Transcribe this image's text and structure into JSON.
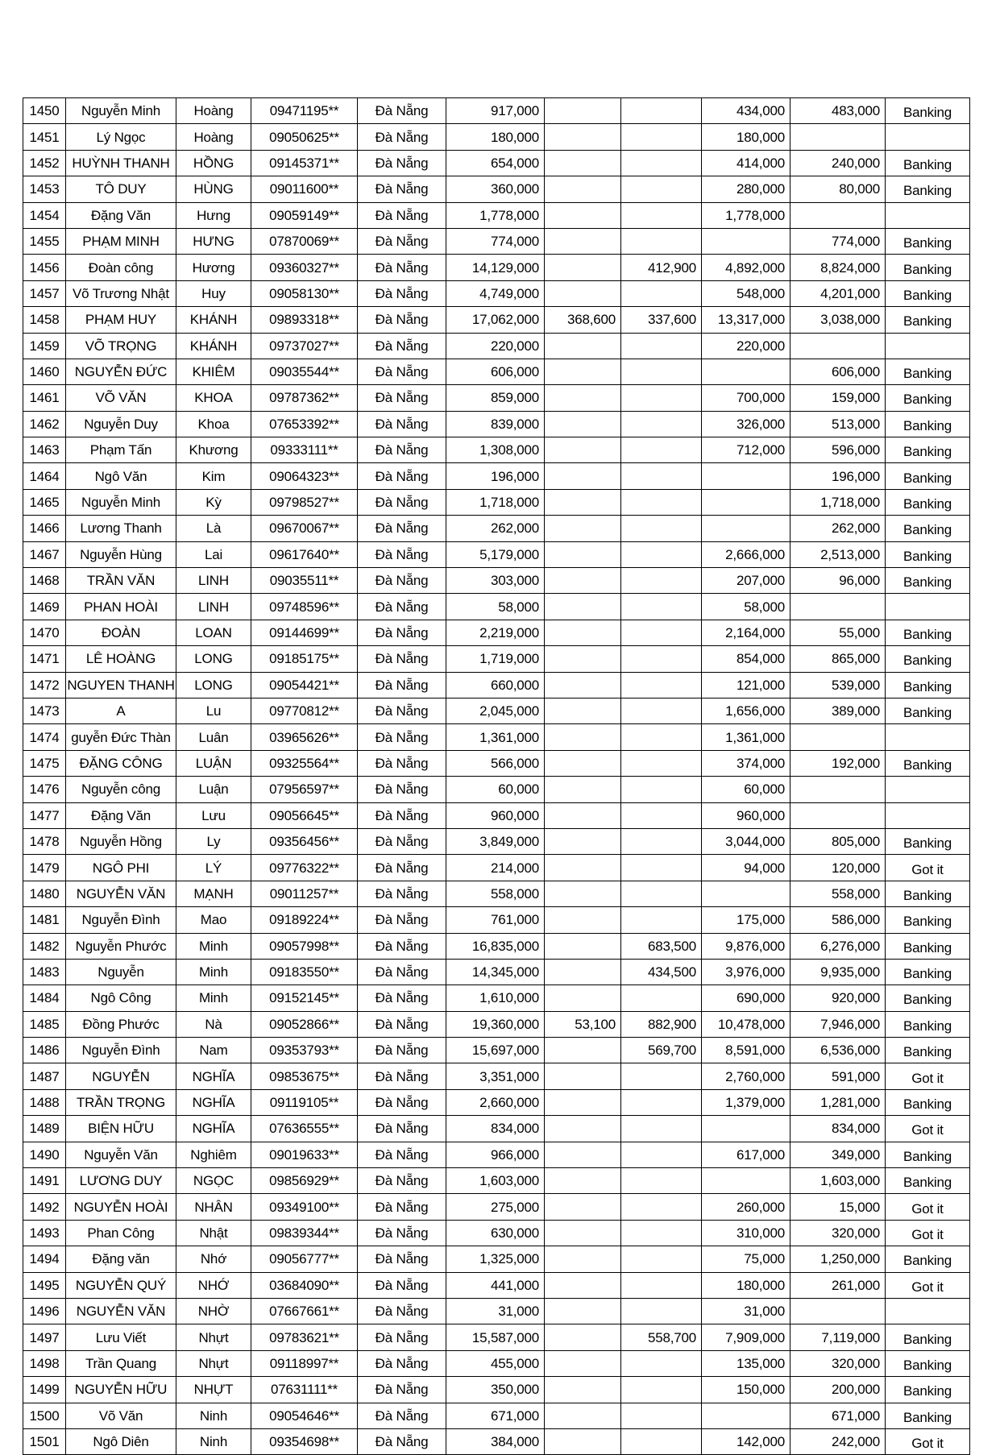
{
  "rows": [
    [
      "1450",
      "Nguyễn Minh",
      "Hoàng",
      "09471195**",
      "Đà Nẵng",
      "917,000",
      "",
      "",
      "434,000",
      "483,000",
      "Banking"
    ],
    [
      "1451",
      "Lý Ngọc",
      "Hoàng",
      "09050625**",
      "Đà Nẵng",
      "180,000",
      "",
      "",
      "180,000",
      "",
      ""
    ],
    [
      "1452",
      "HUỲNH THANH",
      "HỒNG",
      "09145371**",
      "Đà Nẵng",
      "654,000",
      "",
      "",
      "414,000",
      "240,000",
      "Banking"
    ],
    [
      "1453",
      "TÔ DUY",
      "HÙNG",
      "09011600**",
      "Đà Nẵng",
      "360,000",
      "",
      "",
      "280,000",
      "80,000",
      "Banking"
    ],
    [
      "1454",
      "Đặng Văn",
      "Hưng",
      "09059149**",
      "Đà Nẵng",
      "1,778,000",
      "",
      "",
      "1,778,000",
      "",
      ""
    ],
    [
      "1455",
      "PHẠM MINH",
      "HƯNG",
      "07870069**",
      "Đà Nẵng",
      "774,000",
      "",
      "",
      "",
      "774,000",
      "Banking"
    ],
    [
      "1456",
      "Đoàn công",
      "Hương",
      "09360327**",
      "Đà Nẵng",
      "14,129,000",
      "",
      "412,900",
      "4,892,000",
      "8,824,000",
      "Banking"
    ],
    [
      "1457",
      "Võ Trương Nhật",
      "Huy",
      "09058130**",
      "Đà Nẵng",
      "4,749,000",
      "",
      "",
      "548,000",
      "4,201,000",
      "Banking"
    ],
    [
      "1458",
      "PHẠM HUY",
      "KHÁNH",
      "09893318**",
      "Đà Nẵng",
      "17,062,000",
      "368,600",
      "337,600",
      "13,317,000",
      "3,038,000",
      "Banking"
    ],
    [
      "1459",
      "VÕ TRỌNG",
      "KHÁNH",
      "09737027**",
      "Đà Nẵng",
      "220,000",
      "",
      "",
      "220,000",
      "",
      ""
    ],
    [
      "1460",
      "NGUYỄN ĐỨC",
      "KHIÊM",
      "09035544**",
      "Đà Nẵng",
      "606,000",
      "",
      "",
      "",
      "606,000",
      "Banking"
    ],
    [
      "1461",
      "VÕ VĂN",
      "KHOA",
      "09787362**",
      "Đà Nẵng",
      "859,000",
      "",
      "",
      "700,000",
      "159,000",
      "Banking"
    ],
    [
      "1462",
      "Nguyễn Duy",
      "Khoa",
      "07653392**",
      "Đà Nẵng",
      "839,000",
      "",
      "",
      "326,000",
      "513,000",
      "Banking"
    ],
    [
      "1463",
      "Phạm Tấn",
      "Khương",
      "09333111**",
      "Đà Nẵng",
      "1,308,000",
      "",
      "",
      "712,000",
      "596,000",
      "Banking"
    ],
    [
      "1464",
      "Ngô Văn",
      "Kim",
      "09064323**",
      "Đà Nẵng",
      "196,000",
      "",
      "",
      "",
      "196,000",
      "Banking"
    ],
    [
      "1465",
      "Nguyễn Minh",
      "Kỳ",
      "09798527**",
      "Đà Nẵng",
      "1,718,000",
      "",
      "",
      "",
      "1,718,000",
      "Banking"
    ],
    [
      "1466",
      "Lương Thanh",
      "Là",
      "09670067**",
      "Đà Nẵng",
      "262,000",
      "",
      "",
      "",
      "262,000",
      "Banking"
    ],
    [
      "1467",
      "Nguyễn Hùng",
      "Lai",
      "09617640**",
      "Đà Nẵng",
      "5,179,000",
      "",
      "",
      "2,666,000",
      "2,513,000",
      "Banking"
    ],
    [
      "1468",
      "TRẦN VĂN",
      "LINH",
      "09035511**",
      "Đà Nẵng",
      "303,000",
      "",
      "",
      "207,000",
      "96,000",
      "Banking"
    ],
    [
      "1469",
      "PHAN HOÀI",
      "LINH",
      "09748596**",
      "Đà Nẵng",
      "58,000",
      "",
      "",
      "58,000",
      "",
      ""
    ],
    [
      "1470",
      "ĐOÀN",
      "LOAN",
      "09144699**",
      "Đà Nẵng",
      "2,219,000",
      "",
      "",
      "2,164,000",
      "55,000",
      "Banking"
    ],
    [
      "1471",
      "LÊ HOÀNG",
      "LONG",
      "09185175**",
      "Đà Nẵng",
      "1,719,000",
      "",
      "",
      "854,000",
      "865,000",
      "Banking"
    ],
    [
      "1472",
      "NGUYEN THANH",
      "LONG",
      "09054421**",
      "Đà Nẵng",
      "660,000",
      "",
      "",
      "121,000",
      "539,000",
      "Banking"
    ],
    [
      "1473",
      "A",
      "Lu",
      "09770812**",
      "Đà Nẵng",
      "2,045,000",
      "",
      "",
      "1,656,000",
      "389,000",
      "Banking"
    ],
    [
      "1474",
      "guyễn Đức Thàn",
      "Luân",
      "03965626**",
      "Đà Nẵng",
      "1,361,000",
      "",
      "",
      "1,361,000",
      "",
      ""
    ],
    [
      "1475",
      "ĐẶNG CÔNG",
      "LUẬN",
      "09325564**",
      "Đà Nẵng",
      "566,000",
      "",
      "",
      "374,000",
      "192,000",
      "Banking"
    ],
    [
      "1476",
      "Nguyễn công",
      "Luận",
      "07956597**",
      "Đà Nẵng",
      "60,000",
      "",
      "",
      "60,000",
      "",
      ""
    ],
    [
      "1477",
      "Đặng Văn",
      "Lưu",
      "09056645**",
      "Đà Nẵng",
      "960,000",
      "",
      "",
      "960,000",
      "",
      ""
    ],
    [
      "1478",
      "Nguyễn Hồng",
      "Ly",
      "09356456**",
      "Đà Nẵng",
      "3,849,000",
      "",
      "",
      "3,044,000",
      "805,000",
      "Banking"
    ],
    [
      "1479",
      "NGÔ PHI",
      "LÝ",
      "09776322**",
      "Đà Nẵng",
      "214,000",
      "",
      "",
      "94,000",
      "120,000",
      "Got it"
    ],
    [
      "1480",
      "NGUYỄN VĂN",
      "MẠNH",
      "09011257**",
      "Đà Nẵng",
      "558,000",
      "",
      "",
      "",
      "558,000",
      "Banking"
    ],
    [
      "1481",
      "Nguyễn Đình",
      "Mao",
      "09189224**",
      "Đà Nẵng",
      "761,000",
      "",
      "",
      "175,000",
      "586,000",
      "Banking"
    ],
    [
      "1482",
      "Nguyễn Phước",
      "Minh",
      "09057998**",
      "Đà Nẵng",
      "16,835,000",
      "",
      "683,500",
      "9,876,000",
      "6,276,000",
      "Banking"
    ],
    [
      "1483",
      "Nguyễn",
      "Minh",
      "09183550**",
      "Đà Nẵng",
      "14,345,000",
      "",
      "434,500",
      "3,976,000",
      "9,935,000",
      "Banking"
    ],
    [
      "1484",
      "Ngô Công",
      "Minh",
      "09152145**",
      "Đà Nẵng",
      "1,610,000",
      "",
      "",
      "690,000",
      "920,000",
      "Banking"
    ],
    [
      "1485",
      "Đồng Phước",
      "Nà",
      "09052866**",
      "Đà Nẵng",
      "19,360,000",
      "53,100",
      "882,900",
      "10,478,000",
      "7,946,000",
      "Banking"
    ],
    [
      "1486",
      "Nguyễn Đình",
      "Nam",
      "09353793**",
      "Đà Nẵng",
      "15,697,000",
      "",
      "569,700",
      "8,591,000",
      "6,536,000",
      "Banking"
    ],
    [
      "1487",
      "NGUYỄN",
      "NGHĨA",
      "09853675**",
      "Đà Nẵng",
      "3,351,000",
      "",
      "",
      "2,760,000",
      "591,000",
      "Got it"
    ],
    [
      "1488",
      "TRẦN TRỌNG",
      "NGHĨA",
      "09119105**",
      "Đà Nẵng",
      "2,660,000",
      "",
      "",
      "1,379,000",
      "1,281,000",
      "Banking"
    ],
    [
      "1489",
      "BIỆN HỮU",
      "NGHĨA",
      "07636555**",
      "Đà Nẵng",
      "834,000",
      "",
      "",
      "",
      "834,000",
      "Got it"
    ],
    [
      "1490",
      "Nguyễn Văn",
      "Nghiêm",
      "09019633**",
      "Đà Nẵng",
      "966,000",
      "",
      "",
      "617,000",
      "349,000",
      "Banking"
    ],
    [
      "1491",
      "LƯƠNG DUY",
      "NGỌC",
      "09856929**",
      "Đà Nẵng",
      "1,603,000",
      "",
      "",
      "",
      "1,603,000",
      "Banking"
    ],
    [
      "1492",
      "NGUYỄN HOÀI",
      "NHÂN",
      "09349100**",
      "Đà Nẵng",
      "275,000",
      "",
      "",
      "260,000",
      "15,000",
      "Got it"
    ],
    [
      "1493",
      "Phan Công",
      "Nhật",
      "09839344**",
      "Đà Nẵng",
      "630,000",
      "",
      "",
      "310,000",
      "320,000",
      "Got it"
    ],
    [
      "1494",
      "Đặng văn",
      "Nhớ",
      "09056777**",
      "Đà Nẵng",
      "1,325,000",
      "",
      "",
      "75,000",
      "1,250,000",
      "Banking"
    ],
    [
      "1495",
      "NGUYỄN QUÝ",
      "NHỚ",
      "03684090**",
      "Đà Nẵng",
      "441,000",
      "",
      "",
      "180,000",
      "261,000",
      "Got it"
    ],
    [
      "1496",
      "NGUYỄN VĂN",
      "NHỜ",
      "07667661**",
      "Đà Nẵng",
      "31,000",
      "",
      "",
      "31,000",
      "",
      ""
    ],
    [
      "1497",
      "Lưu Viết",
      "Nhựt",
      "09783621**",
      "Đà Nẵng",
      "15,587,000",
      "",
      "558,700",
      "7,909,000",
      "7,119,000",
      "Banking"
    ],
    [
      "1498",
      "Trần Quang",
      "Nhựt",
      "09118997**",
      "Đà Nẵng",
      "455,000",
      "",
      "",
      "135,000",
      "320,000",
      "Banking"
    ],
    [
      "1499",
      "NGUYỄN HỮU",
      "NHỰT",
      "07631111**",
      "Đà Nẵng",
      "350,000",
      "",
      "",
      "150,000",
      "200,000",
      "Banking"
    ],
    [
      "1500",
      "Võ Văn",
      "Ninh",
      "09054646**",
      "Đà Nẵng",
      "671,000",
      "",
      "",
      "",
      "671,000",
      "Banking"
    ],
    [
      "1501",
      "Ngô Diên",
      "Ninh",
      "09354698**",
      "Đà Nẵng",
      "384,000",
      "",
      "",
      "142,000",
      "242,000",
      "Got it"
    ]
  ]
}
